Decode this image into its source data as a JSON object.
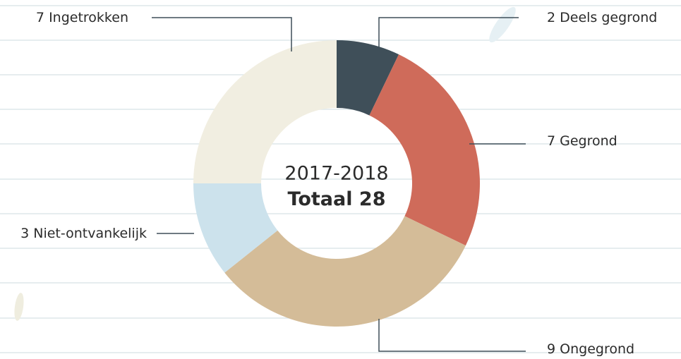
{
  "chart_data": {
    "type": "donut",
    "subtitle": "2017-2018",
    "total": {
      "label": "Totaal",
      "value": 28
    },
    "categories": [
      "Deels gegrond",
      "Gegrond",
      "Ongegrond",
      "Niet-ontvankelijk",
      "Ingetrokken"
    ],
    "values": [
      2,
      7,
      9,
      3,
      7
    ],
    "colors": [
      "#3f4f59",
      "#cf6b5a",
      "#d4bc98",
      "#cce2ec",
      "#f1eee1"
    ]
  }
}
